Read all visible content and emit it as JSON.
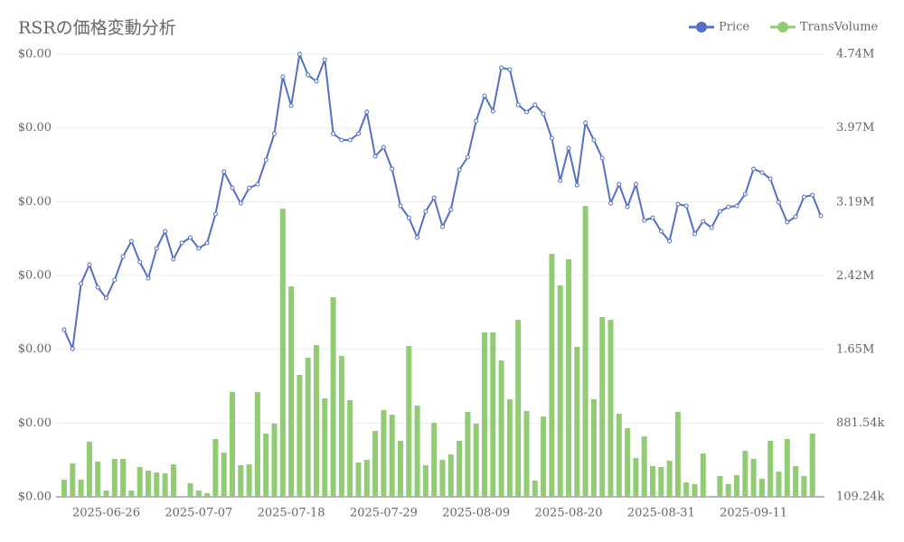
{
  "chart_data": {
    "type": "bar-line",
    "title": "RSRの価格変動分析",
    "categories": [
      null,
      null,
      null,
      null,
      null,
      "2025-06-26",
      null,
      null,
      null,
      null,
      null,
      null,
      null,
      null,
      null,
      null,
      "2025-07-07",
      null,
      null,
      null,
      null,
      null,
      null,
      null,
      null,
      null,
      null,
      "2025-07-18",
      null,
      null,
      null,
      null,
      null,
      null,
      null,
      null,
      null,
      null,
      "2025-07-29",
      null,
      null,
      null,
      null,
      null,
      null,
      null,
      null,
      null,
      null,
      "2025-08-09",
      null,
      null,
      null,
      null,
      null,
      null,
      null,
      null,
      null,
      null,
      "2025-08-20",
      null,
      null,
      null,
      null,
      null,
      null,
      null,
      null,
      null,
      null,
      "2025-08-31",
      null,
      null,
      null,
      null,
      null,
      null,
      null,
      null,
      null,
      null,
      "2025-09-11",
      null,
      null,
      null,
      null,
      null,
      null,
      null,
      null
    ],
    "series": [
      {
        "name": "Price",
        "color": "#5470c6",
        "type": "line",
        "values": [
          0.00285,
          0.00264,
          0.00336,
          0.00357,
          0.00332,
          0.0032,
          0.0034,
          0.00366,
          0.00383,
          0.0036,
          0.00342,
          0.00375,
          0.00394,
          0.00363,
          0.00381,
          0.00387,
          0.00375,
          0.00381,
          0.00413,
          0.0046,
          0.00442,
          0.00425,
          0.00442,
          0.00446,
          0.00473,
          0.00502,
          0.00565,
          0.00533,
          0.0059,
          0.00567,
          0.0056,
          0.00584,
          0.00502,
          0.00495,
          0.00495,
          0.00502,
          0.00526,
          0.00477,
          0.00487,
          0.00463,
          0.00422,
          0.00409,
          0.00387,
          0.00416,
          0.00431,
          0.00399,
          0.00418,
          0.00462,
          0.00476,
          0.00516,
          0.00544,
          0.00527,
          0.00575,
          0.00573,
          0.00534,
          0.00526,
          0.00534,
          0.00524,
          0.00497,
          0.0045,
          0.00486,
          0.00445,
          0.00514,
          0.00495,
          0.00475,
          0.00425,
          0.00446,
          0.00421,
          0.00446,
          0.00406,
          0.00409,
          0.00394,
          0.00383,
          0.00424,
          0.00422,
          0.00391,
          0.00405,
          0.00398,
          0.00416,
          0.00421,
          0.00422,
          0.00435,
          0.00463,
          0.00459,
          0.00452,
          0.00426,
          0.00404,
          0.0041,
          0.00432,
          0.00434,
          0.00411
        ]
      },
      {
        "name": "TransVolume",
        "color": "#91cc75",
        "type": "bar",
        "axis": "y2",
        "values": [
          289000,
          459000,
          289000,
          686000,
          478000,
          175000,
          506000,
          506000,
          175000,
          421000,
          383000,
          364000,
          355000,
          449000,
          109240,
          251000,
          175000,
          147000,
          714000,
          572000,
          1205000,
          440000,
          449000,
          1205000,
          771000,
          875000,
          3124000,
          2311000,
          1385000,
          1565000,
          1697000,
          1139000,
          2198000,
          1584000,
          1121000,
          468000,
          497000,
          799000,
          1017000,
          969000,
          695000,
          1687000,
          1064000,
          440000,
          884000,
          497000,
          553000,
          695000,
          998000,
          875000,
          1829000,
          1829000,
          1536000,
          1130000,
          1961000,
          1007000,
          279000,
          950000,
          2651000,
          2321000,
          2595000,
          1678000,
          3152000,
          1130000,
          1990000,
          1961000,
          979000,
          827000,
          516000,
          742000,
          431000,
          421000,
          487000,
          998000,
          260000,
          242000,
          563000,
          109240,
          327000,
          242000,
          336000,
          591000,
          506000,
          298000,
          695000,
          374000,
          714000,
          431000,
          327000,
          771000,
          109240
        ]
      }
    ],
    "ylim": [
      0.001,
      0.0059
    ],
    "yticks": [
      {
        "value": 0.001,
        "label": "$0.00"
      },
      {
        "value": 0.0018167,
        "label": "$0.00"
      },
      {
        "value": 0.0026333,
        "label": "$0.00"
      },
      {
        "value": 0.00345,
        "label": "$0.00"
      },
      {
        "value": 0.0042667,
        "label": "$0.00"
      },
      {
        "value": 0.0050833,
        "label": "$0.00"
      },
      {
        "value": 0.0059,
        "label": "$0.00"
      }
    ],
    "y2lim": [
      109240,
      4740000
    ],
    "y2ticks": [
      {
        "value": 109240,
        "label": "109.24k"
      },
      {
        "value": 881540,
        "label": "881.54k"
      },
      {
        "value": 1650000,
        "label": "1.65M"
      },
      {
        "value": 2420000,
        "label": "2.42M"
      },
      {
        "value": 3190000,
        "label": "3.19M"
      },
      {
        "value": 3970000,
        "label": "3.97M"
      },
      {
        "value": 4740000,
        "label": "4.74M"
      }
    ],
    "grid": true,
    "legend": "top-right"
  }
}
